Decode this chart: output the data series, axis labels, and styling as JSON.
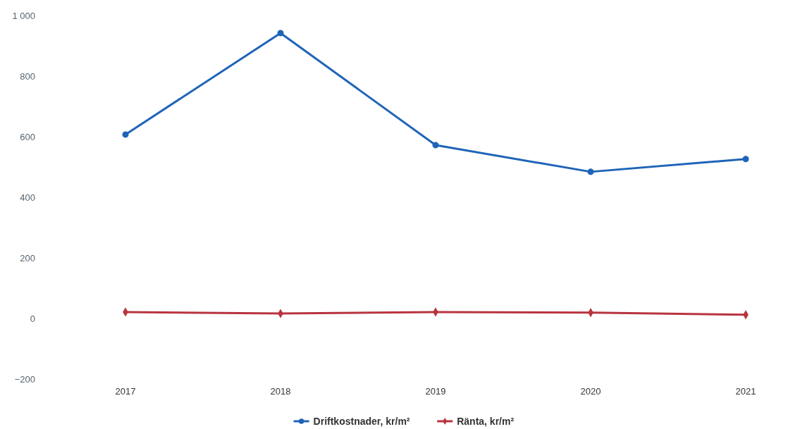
{
  "chart_data": {
    "type": "line",
    "categories": [
      "2017",
      "2018",
      "2019",
      "2020",
      "2021"
    ],
    "series": [
      {
        "name": "Driftkostnader, kr/m²",
        "color": "#1f64b8",
        "marker": "circle",
        "values": [
          607,
          942,
          572,
          484,
          526
        ]
      },
      {
        "name": "Ränta, kr/m²",
        "color": "#b8343f",
        "marker": "diamond",
        "values": [
          21,
          16,
          21,
          19,
          12
        ]
      }
    ],
    "ylim": [
      -200,
      1000
    ],
    "yticks": [
      {
        "value": -200,
        "label": "−200"
      },
      0,
      200,
      400,
      600,
      800,
      {
        "value": 1000,
        "label": "1 000"
      }
    ],
    "grid": false,
    "legend": "bottom",
    "line_style": "solid"
  }
}
